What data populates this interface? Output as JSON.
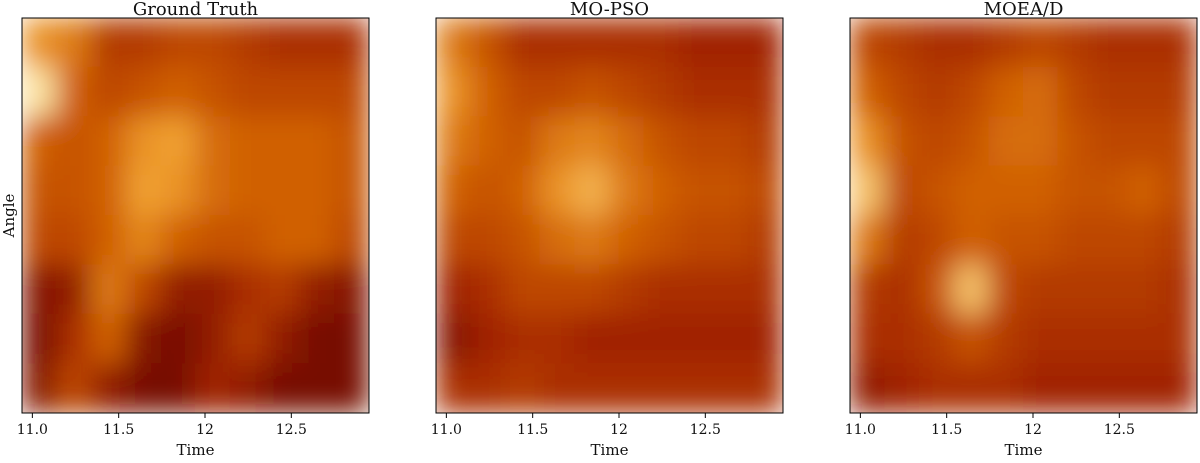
{
  "chart_data": [
    {
      "type": "heatmap",
      "title": "Ground Truth",
      "xlabel": "Time",
      "ylabel": "Angle",
      "xlim": [
        10.94,
        12.95
      ],
      "xticks": [
        {
          "value": 11,
          "label": "11.0"
        },
        11.5,
        12,
        12.5
      ],
      "colormap": [
        "#5c0000",
        "#a02000",
        "#d06000",
        "#f0a030",
        "#fff5c0"
      ],
      "z": [
        [
          0.7,
          0.6,
          0.35,
          0.35,
          0.4,
          0.4,
          0.35,
          0.3,
          0.3,
          0.3
        ],
        [
          0.95,
          0.5,
          0.4,
          0.45,
          0.5,
          0.45,
          0.4,
          0.4,
          0.4,
          0.4
        ],
        [
          0.5,
          0.45,
          0.5,
          0.7,
          0.75,
          0.55,
          0.5,
          0.5,
          0.5,
          0.45
        ],
        [
          0.45,
          0.45,
          0.5,
          0.75,
          0.7,
          0.55,
          0.5,
          0.5,
          0.5,
          0.45
        ],
        [
          0.4,
          0.4,
          0.5,
          0.65,
          0.5,
          0.45,
          0.45,
          0.5,
          0.5,
          0.4
        ],
        [
          0.15,
          0.2,
          0.6,
          0.4,
          0.2,
          0.2,
          0.3,
          0.35,
          0.2,
          0.15
        ],
        [
          0.1,
          0.3,
          0.5,
          0.15,
          0.1,
          0.2,
          0.35,
          0.2,
          0.1,
          0.1
        ],
        [
          0.15,
          0.4,
          0.2,
          0.1,
          0.1,
          0.25,
          0.2,
          0.1,
          0.1,
          0.1
        ]
      ]
    },
    {
      "type": "heatmap",
      "title": "MO-PSO",
      "xlabel": "Time",
      "xlim": [
        10.94,
        12.95
      ],
      "xticks": [
        {
          "value": 11,
          "label": "11.0"
        },
        11.5,
        12,
        12.5
      ],
      "colormap": [
        "#5c0000",
        "#a02000",
        "#d06000",
        "#f0a030",
        "#fff5c0"
      ],
      "z": [
        [
          0.6,
          0.45,
          0.3,
          0.3,
          0.3,
          0.3,
          0.3,
          0.25,
          0.25,
          0.25
        ],
        [
          0.7,
          0.5,
          0.4,
          0.4,
          0.45,
          0.4,
          0.35,
          0.3,
          0.3,
          0.3
        ],
        [
          0.6,
          0.5,
          0.45,
          0.6,
          0.65,
          0.55,
          0.45,
          0.4,
          0.4,
          0.35
        ],
        [
          0.5,
          0.45,
          0.5,
          0.7,
          0.8,
          0.6,
          0.5,
          0.45,
          0.45,
          0.4
        ],
        [
          0.4,
          0.4,
          0.45,
          0.55,
          0.6,
          0.5,
          0.45,
          0.4,
          0.4,
          0.35
        ],
        [
          0.25,
          0.3,
          0.4,
          0.4,
          0.4,
          0.35,
          0.3,
          0.3,
          0.3,
          0.3
        ],
        [
          0.15,
          0.25,
          0.3,
          0.3,
          0.25,
          0.25,
          0.25,
          0.25,
          0.25,
          0.25
        ],
        [
          0.3,
          0.3,
          0.35,
          0.3,
          0.3,
          0.3,
          0.3,
          0.3,
          0.3,
          0.3
        ]
      ]
    },
    {
      "type": "heatmap",
      "title": "MOEA/D",
      "xlabel": "Time",
      "xlim": [
        10.94,
        12.95
      ],
      "xticks": [
        {
          "value": 11,
          "label": "11.0"
        },
        11.5,
        12,
        12.5
      ],
      "colormap": [
        "#5c0000",
        "#a02000",
        "#d06000",
        "#f0a030",
        "#fff5c0"
      ],
      "z": [
        [
          0.4,
          0.35,
          0.3,
          0.3,
          0.35,
          0.4,
          0.35,
          0.3,
          0.3,
          0.3
        ],
        [
          0.5,
          0.4,
          0.35,
          0.4,
          0.5,
          0.55,
          0.4,
          0.35,
          0.35,
          0.35
        ],
        [
          0.7,
          0.45,
          0.4,
          0.45,
          0.55,
          0.55,
          0.45,
          0.4,
          0.4,
          0.4
        ],
        [
          0.85,
          0.4,
          0.45,
          0.5,
          0.5,
          0.5,
          0.45,
          0.45,
          0.5,
          0.4
        ],
        [
          0.6,
          0.35,
          0.4,
          0.5,
          0.45,
          0.45,
          0.4,
          0.4,
          0.4,
          0.35
        ],
        [
          0.35,
          0.3,
          0.45,
          0.85,
          0.4,
          0.35,
          0.35,
          0.35,
          0.35,
          0.3
        ],
        [
          0.3,
          0.3,
          0.35,
          0.45,
          0.35,
          0.3,
          0.3,
          0.3,
          0.3,
          0.3
        ],
        [
          0.2,
          0.25,
          0.3,
          0.3,
          0.3,
          0.25,
          0.25,
          0.25,
          0.25,
          0.25
        ]
      ]
    }
  ]
}
